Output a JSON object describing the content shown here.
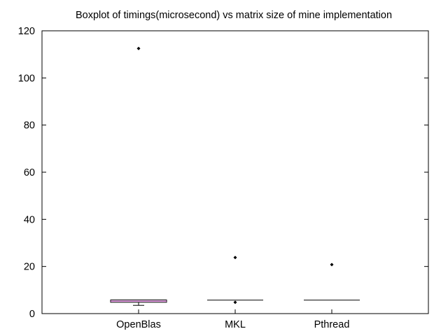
{
  "chart_data": {
    "type": "box",
    "title": "Boxplot of timings(microsecond) vs matrix size of mine implementation",
    "xlabel": "",
    "ylabel": "",
    "ylim": [
      0,
      120
    ],
    "yticks": [
      0,
      20,
      40,
      60,
      80,
      100,
      120
    ],
    "categories": [
      "OpenBlas",
      "MKL",
      "Pthread"
    ],
    "boxes": [
      {
        "category": "OpenBlas",
        "whisker_low": 3.5,
        "q1": 4.8,
        "median": 5.3,
        "q3": 5.8,
        "whisker_high": 5.8,
        "outliers": [
          112.5
        ]
      },
      {
        "category": "MKL",
        "whisker_low": 5.7,
        "q1": 5.7,
        "median": 5.7,
        "q3": 5.7,
        "whisker_high": 5.7,
        "outliers": [
          23.8,
          4.8
        ]
      },
      {
        "category": "Pthread",
        "whisker_low": 5.7,
        "q1": 5.7,
        "median": 5.7,
        "q3": 5.7,
        "whisker_high": 5.7,
        "outliers": [
          20.8
        ]
      }
    ],
    "grid": false,
    "colors": {
      "box_edge": "#000000",
      "median_line": "#cc44cc",
      "axis": "#000000"
    }
  }
}
